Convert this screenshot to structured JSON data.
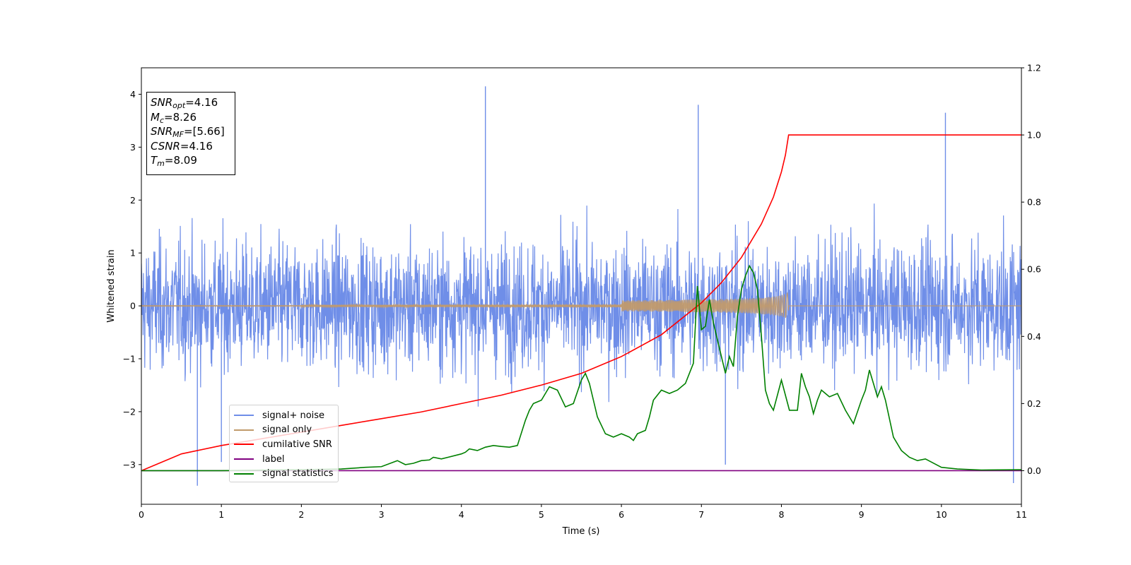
{
  "chart_data": {
    "type": "line",
    "xlabel": "Time (s)",
    "ylabel": "Whitened strain",
    "xlim": [
      0,
      11
    ],
    "ylim": [
      -3.75,
      4.5
    ],
    "y2lim": [
      -0.1,
      1.2
    ],
    "xticks": [
      "0",
      "1",
      "2",
      "3",
      "4",
      "5",
      "6",
      "7",
      "8",
      "9",
      "10",
      "11"
    ],
    "yticks": [
      "−3",
      "−2",
      "−1",
      "0",
      "1",
      "2",
      "3",
      "4"
    ],
    "y2ticks": [
      "0.0",
      "0.2",
      "0.4",
      "0.6",
      "0.8",
      "1.0",
      "1.2"
    ],
    "grid": false,
    "legend_placement": "lower-left",
    "annotation": {
      "snr_opt": {
        "sym": "SNR",
        "sub": "opt",
        "value": "=4.16"
      },
      "mc": {
        "sym": "M",
        "sub": "c",
        "value": "=8.26"
      },
      "snr_mf": {
        "sym": "SNR",
        "sub": "MF",
        "value": "=[5.66]"
      },
      "csnr": {
        "sym": "CSNR",
        "sub": "",
        "value": "=4.16"
      },
      "tm": {
        "sym": "T",
        "sub": "m",
        "value": "=8.09"
      }
    },
    "series": [
      {
        "name": "signal+ noise",
        "axis": "left",
        "color": "#6f8ee8",
        "description_range": [
          -3.4,
          4.2
        ],
        "noise_std": 0.85,
        "peaks": [
          [
            0.7,
            -3.4
          ],
          [
            4.3,
            4.15
          ],
          [
            6.96,
            3.8
          ],
          [
            10.05,
            3.65
          ],
          [
            10.9,
            -3.35
          ],
          [
            1.0,
            -2.95
          ],
          [
            7.3,
            -3.0
          ]
        ]
      },
      {
        "name": "signal only",
        "axis": "left",
        "color": "#c19a6b",
        "merger_time": 8.09,
        "max_amplitude": 0.6,
        "min_amplitude": -0.4
      },
      {
        "name": "cumilative SNR",
        "axis": "right",
        "color": "#ff0000",
        "x": [
          0,
          0.5,
          1,
          1.5,
          2,
          2.5,
          3,
          3.5,
          4,
          4.5,
          5,
          5.5,
          6,
          6.5,
          7,
          7.25,
          7.5,
          7.75,
          7.9,
          8.0,
          8.05,
          8.09,
          8.1,
          9,
          10,
          11
        ],
        "y": [
          0.0,
          0.05,
          0.075,
          0.095,
          0.115,
          0.135,
          0.155,
          0.175,
          0.2,
          0.225,
          0.255,
          0.29,
          0.34,
          0.405,
          0.5,
          0.56,
          0.635,
          0.735,
          0.815,
          0.89,
          0.94,
          1.0,
          1.0,
          1.0,
          1.0,
          1.0
        ]
      },
      {
        "name": "label",
        "axis": "right",
        "color": "#800080",
        "x": [
          0,
          11
        ],
        "y": [
          0,
          0
        ]
      },
      {
        "name": "signal statistics",
        "axis": "right",
        "color": "#008000",
        "x": [
          0,
          1,
          2,
          2.5,
          2.8,
          3,
          3.2,
          3.3,
          3.4,
          3.5,
          3.6,
          3.65,
          3.75,
          4,
          4.05,
          4.1,
          4.2,
          4.3,
          4.4,
          4.5,
          4.6,
          4.7,
          4.8,
          4.85,
          4.9,
          5.0,
          5.05,
          5.1,
          5.2,
          5.3,
          5.4,
          5.5,
          5.55,
          5.6,
          5.7,
          5.8,
          5.9,
          6.0,
          6.1,
          6.15,
          6.2,
          6.3,
          6.35,
          6.4,
          6.5,
          6.6,
          6.7,
          6.8,
          6.9,
          6.95,
          7.0,
          7.05,
          7.1,
          7.15,
          7.2,
          7.3,
          7.35,
          7.4,
          7.45,
          7.5,
          7.55,
          7.6,
          7.65,
          7.7,
          7.75,
          7.8,
          7.85,
          7.9,
          8.0,
          8.1,
          8.2,
          8.25,
          8.3,
          8.35,
          8.4,
          8.45,
          8.5,
          8.6,
          8.7,
          8.8,
          8.9,
          9.0,
          9.05,
          9.1,
          9.15,
          9.2,
          9.25,
          9.3,
          9.4,
          9.5,
          9.6,
          9.7,
          9.8,
          10.0,
          10.2,
          10.5,
          11.0
        ],
        "y": [
          0.0,
          0.0,
          0.003,
          0.005,
          0.01,
          0.012,
          0.03,
          0.018,
          0.022,
          0.03,
          0.032,
          0.04,
          0.035,
          0.05,
          0.055,
          0.065,
          0.06,
          0.07,
          0.075,
          0.072,
          0.07,
          0.075,
          0.15,
          0.18,
          0.2,
          0.21,
          0.23,
          0.25,
          0.24,
          0.19,
          0.2,
          0.27,
          0.29,
          0.26,
          0.16,
          0.11,
          0.1,
          0.11,
          0.1,
          0.09,
          0.11,
          0.12,
          0.16,
          0.21,
          0.24,
          0.23,
          0.24,
          0.26,
          0.32,
          0.55,
          0.42,
          0.43,
          0.51,
          0.44,
          0.39,
          0.29,
          0.34,
          0.31,
          0.46,
          0.54,
          0.58,
          0.61,
          0.59,
          0.54,
          0.4,
          0.24,
          0.2,
          0.18,
          0.27,
          0.18,
          0.18,
          0.29,
          0.25,
          0.22,
          0.17,
          0.21,
          0.24,
          0.22,
          0.23,
          0.18,
          0.14,
          0.21,
          0.24,
          0.3,
          0.26,
          0.22,
          0.25,
          0.21,
          0.1,
          0.06,
          0.04,
          0.03,
          0.035,
          0.01,
          0.005,
          0.002,
          0.003
        ]
      }
    ]
  }
}
